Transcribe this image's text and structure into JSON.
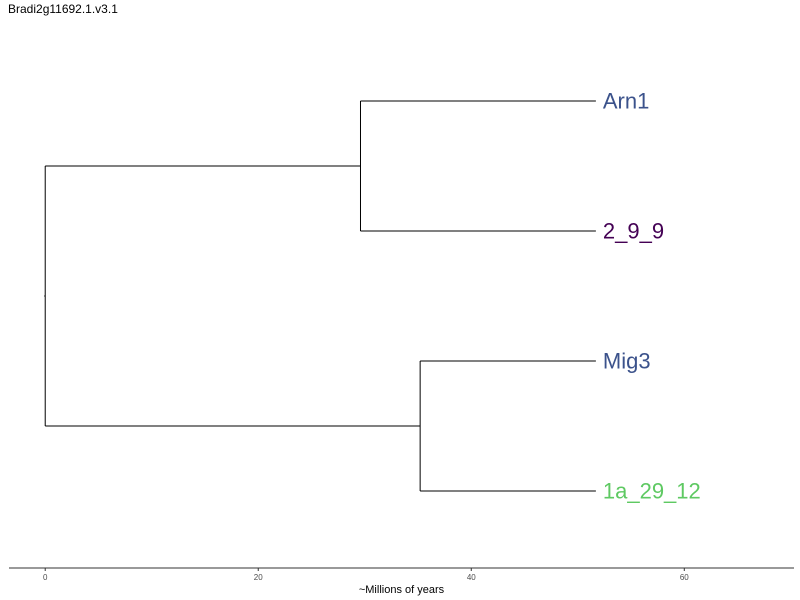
{
  "title": "Bradi2g11692.1.v3.1",
  "x_axis": {
    "label": "~Millions of years",
    "range": [
      -3.4,
      70.3
    ],
    "ticks": [
      0,
      20,
      40,
      60
    ]
  },
  "tree": {
    "root": {
      "x": 0,
      "children": [
        "A",
        "B"
      ]
    },
    "internal": [
      {
        "id": "A",
        "x": 29.6,
        "children": [
          "Arn1",
          "2_9_9"
        ]
      },
      {
        "id": "B",
        "x": 35.2,
        "children": [
          "Mig3",
          "1a_29_12"
        ]
      }
    ],
    "leaves": [
      {
        "id": "Arn1",
        "label": "Arn1",
        "x": 51.7,
        "order": 0,
        "color": "#3b528b"
      },
      {
        "id": "2_9_9",
        "label": "2_9_9",
        "x": 51.7,
        "order": 1,
        "color": "#440154"
      },
      {
        "id": "Mig3",
        "label": "Mig3",
        "x": 51.7,
        "order": 2,
        "color": "#3b528b"
      },
      {
        "id": "1a_29_12",
        "label": "1a_29_12",
        "x": 51.7,
        "order": 3,
        "color": "#5ec962"
      }
    ]
  }
}
